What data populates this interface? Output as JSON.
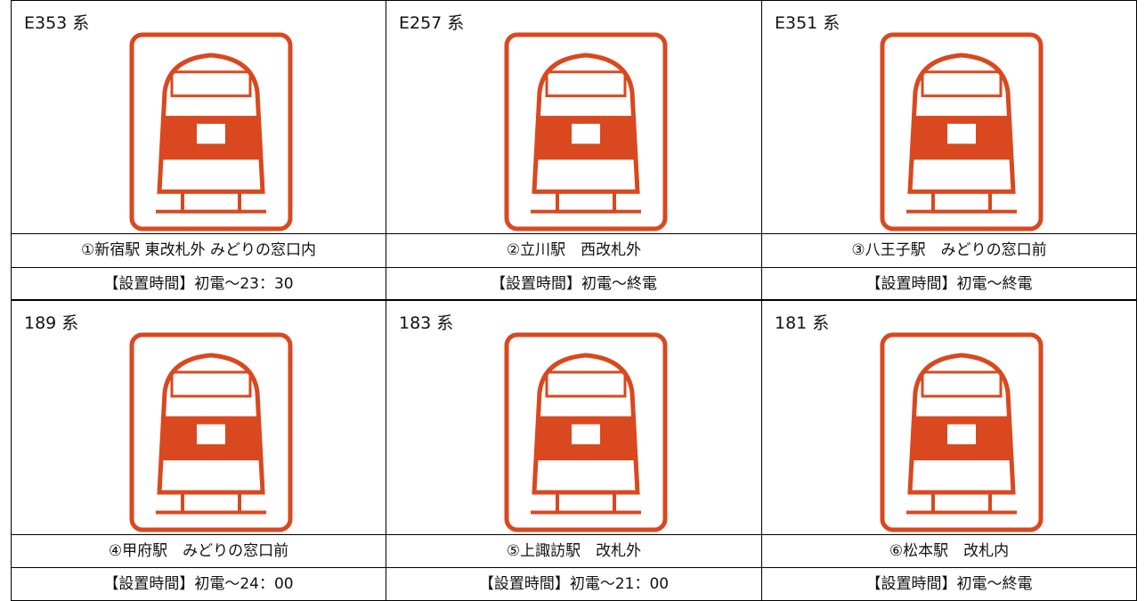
{
  "cards": [
    {
      "series": "E353 系",
      "location": "①新宿駅 東改札外 みどりの窓口内",
      "hours": "【設置時間】初電～23：30"
    },
    {
      "series": "E257 系",
      "location": "②立川駅　西改札外",
      "hours": "【設置時間】初電～終電"
    },
    {
      "series": "E351 系",
      "location": "③八王子駅　みどりの窓口前",
      "hours": "【設置時間】初電～終電"
    },
    {
      "series": "189 系",
      "location": "④甲府駅　みどりの窓口前",
      "hours": "【設置時間】初電～24：00"
    },
    {
      "series": "183 系",
      "location": "⑤上諏訪駅　改札外",
      "hours": "【設置時間】初電～21：00"
    },
    {
      "series": "181 系",
      "location": "⑥松本駅　改札内",
      "hours": "【設置時間】初電～終電"
    }
  ]
}
